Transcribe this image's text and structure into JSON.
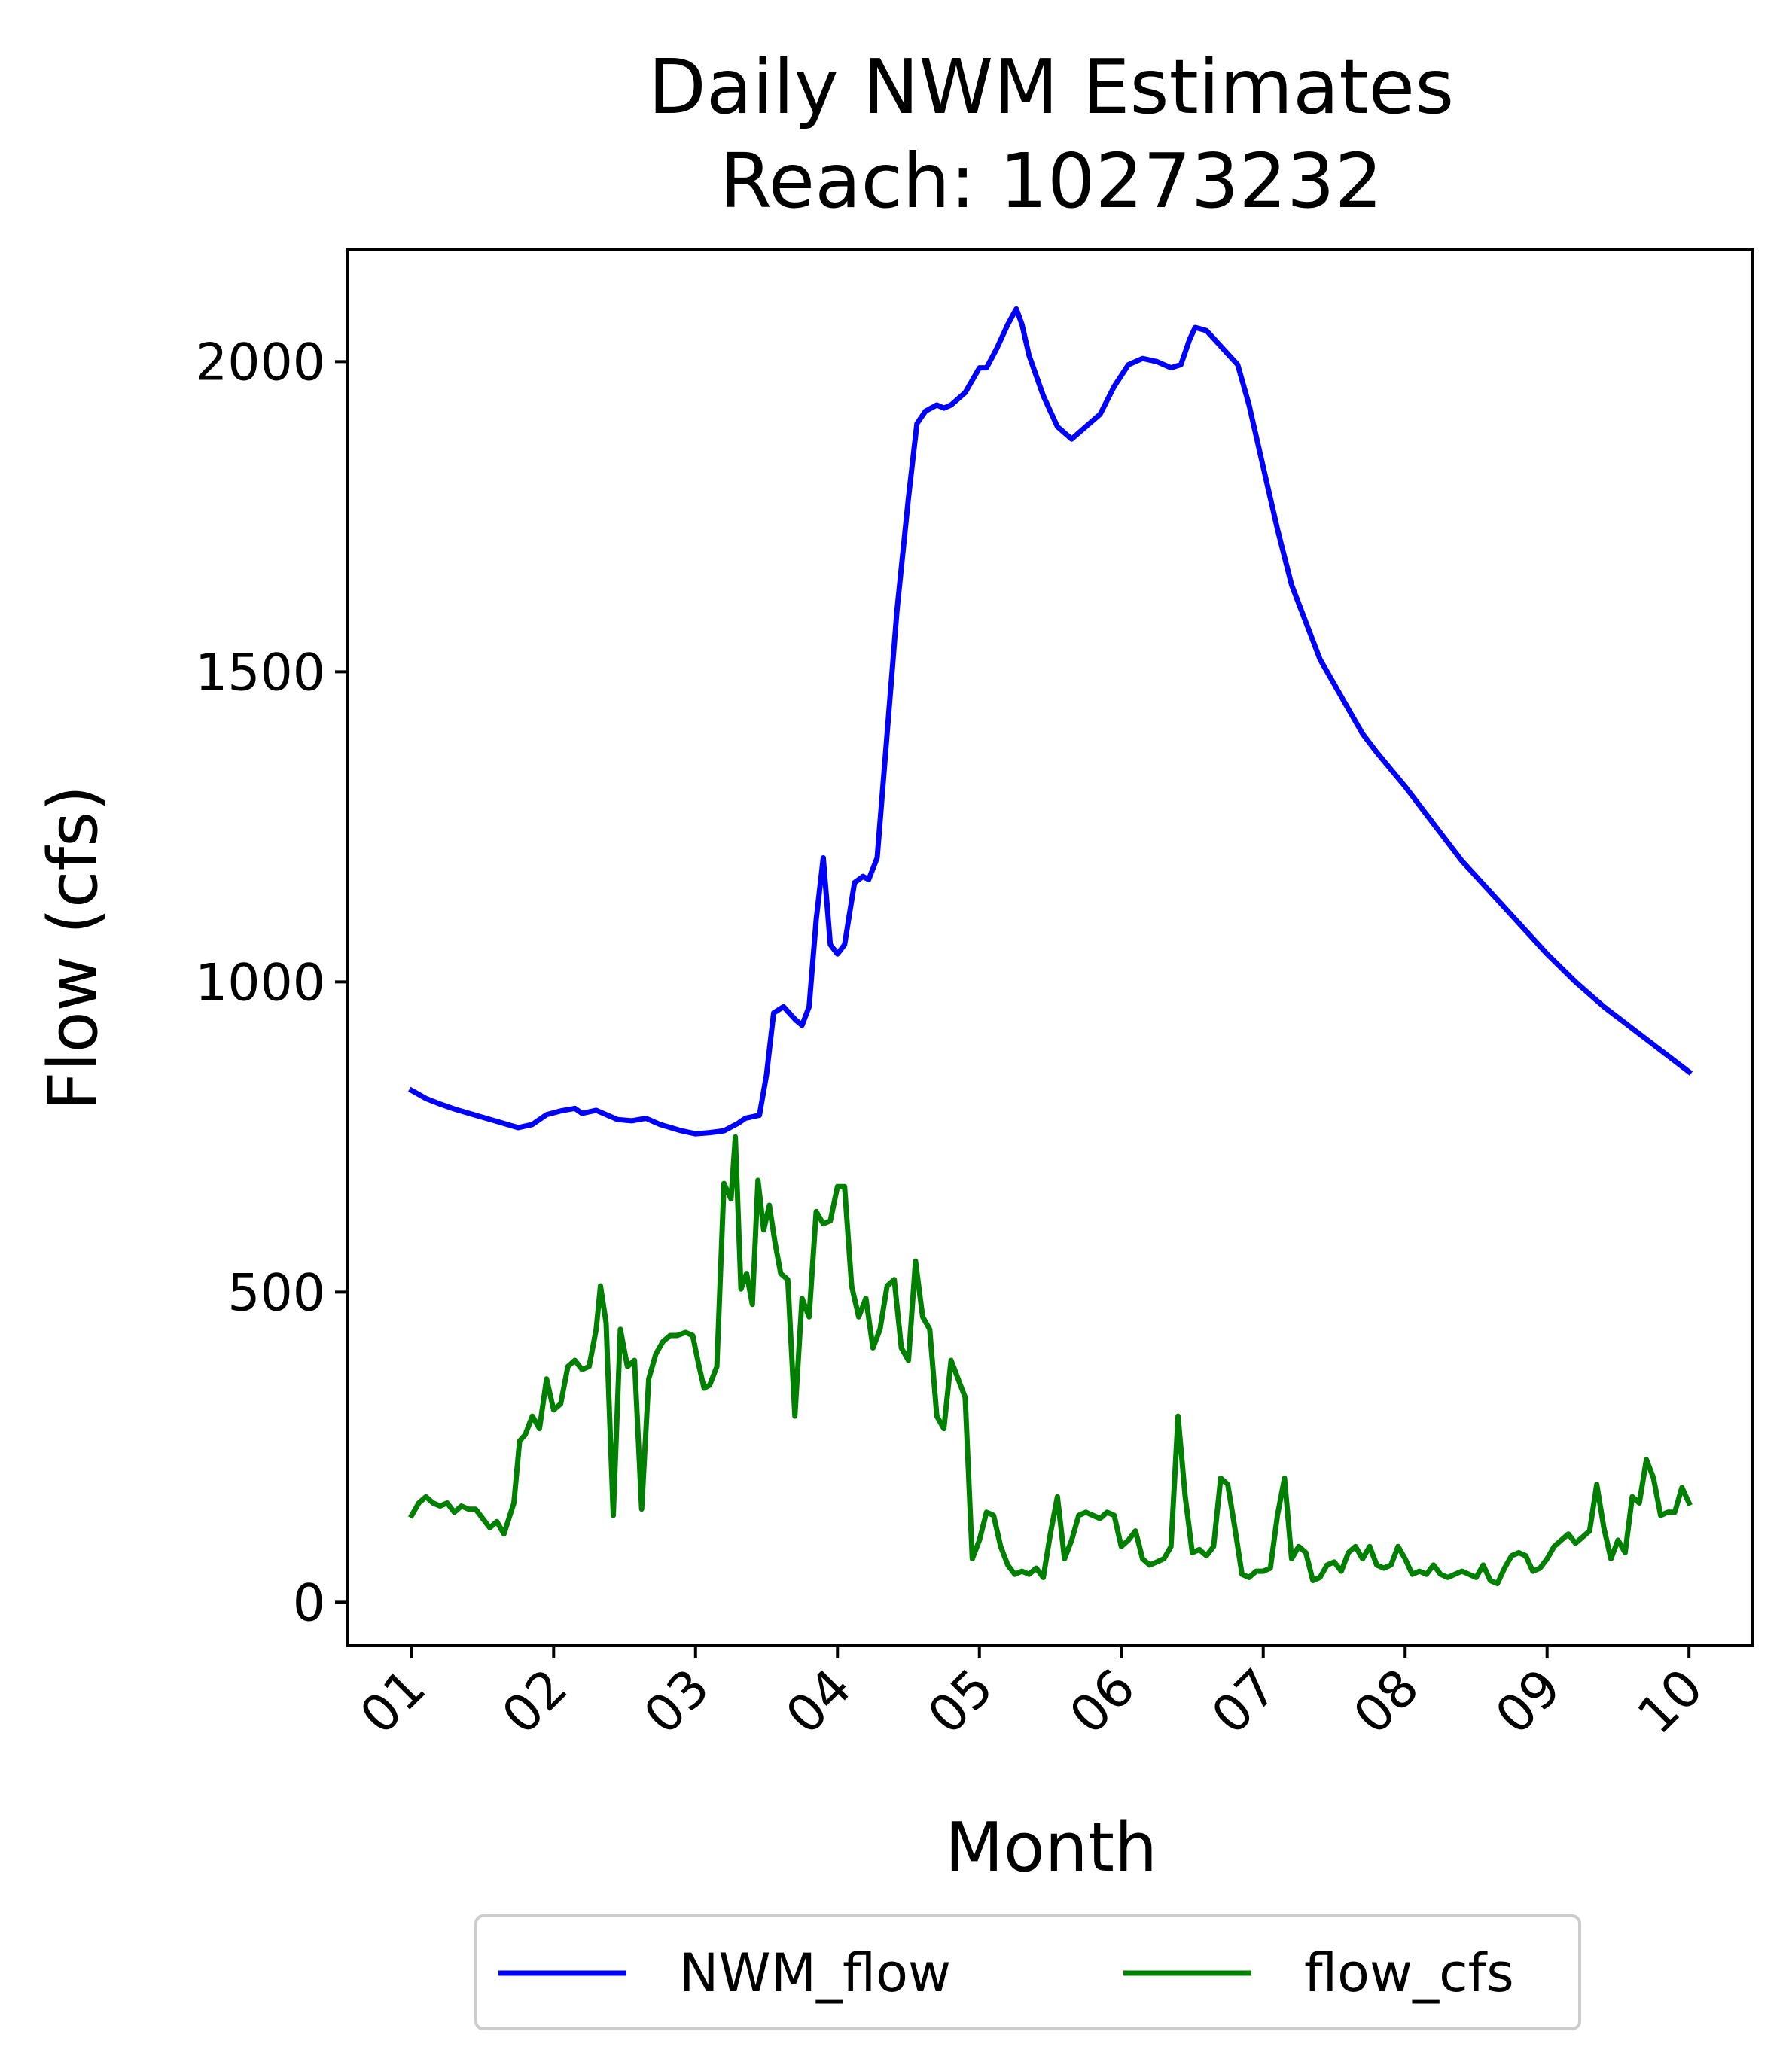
{
  "chart_data": {
    "type": "line",
    "title": [
      "Daily NWM Estimates",
      "Reach: 10273232"
    ],
    "xlabel": "Month",
    "ylabel": "Flow (cfs)",
    "x_tick_labels": [
      "01",
      "02",
      "03",
      "04",
      "05",
      "06",
      "07",
      "08",
      "09",
      "10"
    ],
    "xlim": [
      0.55,
      10.45
    ],
    "ylim": [
      -70,
      2180
    ],
    "y_ticks": [
      0,
      500,
      1000,
      1500,
      2000
    ],
    "y_tick_labels": [
      "0",
      "500",
      "1000",
      "1500",
      "2000"
    ],
    "grid": false,
    "legend_position": "bottom-center, below the plot",
    "series": [
      {
        "name": "NWM_flow",
        "color": "#0000ff",
        "points": [
          [
            1.0,
            825
          ],
          [
            1.1,
            812
          ],
          [
            1.2,
            803
          ],
          [
            1.3,
            795
          ],
          [
            1.45,
            785
          ],
          [
            1.6,
            775
          ],
          [
            1.75,
            765
          ],
          [
            1.85,
            770
          ],
          [
            1.95,
            786
          ],
          [
            2.05,
            792
          ],
          [
            2.15,
            796
          ],
          [
            2.2,
            788
          ],
          [
            2.3,
            793
          ],
          [
            2.45,
            778
          ],
          [
            2.55,
            776
          ],
          [
            2.65,
            780
          ],
          [
            2.75,
            770
          ],
          [
            2.9,
            760
          ],
          [
            3.0,
            755
          ],
          [
            3.1,
            757
          ],
          [
            3.2,
            760
          ],
          [
            3.3,
            772
          ],
          [
            3.35,
            780
          ],
          [
            3.45,
            785
          ],
          [
            3.5,
            850
          ],
          [
            3.55,
            950
          ],
          [
            3.62,
            960
          ],
          [
            3.7,
            940
          ],
          [
            3.75,
            930
          ],
          [
            3.8,
            960
          ],
          [
            3.85,
            1100
          ],
          [
            3.9,
            1200
          ],
          [
            3.95,
            1060
          ],
          [
            4.0,
            1045
          ],
          [
            4.05,
            1060
          ],
          [
            4.12,
            1160
          ],
          [
            4.18,
            1170
          ],
          [
            4.22,
            1165
          ],
          [
            4.28,
            1200
          ],
          [
            4.35,
            1400
          ],
          [
            4.42,
            1600
          ],
          [
            4.5,
            1780
          ],
          [
            4.56,
            1900
          ],
          [
            4.62,
            1920
          ],
          [
            4.7,
            1930
          ],
          [
            4.75,
            1925
          ],
          [
            4.8,
            1930
          ],
          [
            4.9,
            1950
          ],
          [
            5.0,
            1990
          ],
          [
            5.05,
            1990
          ],
          [
            5.12,
            2020
          ],
          [
            5.2,
            2060
          ],
          [
            5.26,
            2085
          ],
          [
            5.3,
            2060
          ],
          [
            5.35,
            2010
          ],
          [
            5.45,
            1945
          ],
          [
            5.55,
            1895
          ],
          [
            5.65,
            1875
          ],
          [
            5.75,
            1895
          ],
          [
            5.85,
            1915
          ],
          [
            5.95,
            1960
          ],
          [
            6.05,
            1995
          ],
          [
            6.15,
            2005
          ],
          [
            6.25,
            2000
          ],
          [
            6.35,
            1990
          ],
          [
            6.42,
            1995
          ],
          [
            6.48,
            2035
          ],
          [
            6.52,
            2055
          ],
          [
            6.6,
            2050
          ],
          [
            6.68,
            2030
          ],
          [
            6.76,
            2010
          ],
          [
            6.82,
            1995
          ],
          [
            6.9,
            1930
          ],
          [
            7.0,
            1830
          ],
          [
            7.1,
            1730
          ],
          [
            7.2,
            1640
          ],
          [
            7.3,
            1580
          ],
          [
            7.4,
            1520
          ],
          [
            7.5,
            1480
          ],
          [
            7.6,
            1440
          ],
          [
            7.7,
            1400
          ],
          [
            7.8,
            1370
          ],
          [
            8.0,
            1315
          ],
          [
            8.2,
            1255
          ],
          [
            8.4,
            1195
          ],
          [
            8.6,
            1145
          ],
          [
            8.8,
            1095
          ],
          [
            9.0,
            1045
          ],
          [
            9.2,
            1000
          ],
          [
            9.4,
            960
          ],
          [
            9.6,
            925
          ],
          [
            9.8,
            890
          ],
          [
            10.0,
            855
          ]
        ]
      },
      {
        "name": "flow_cfs",
        "color": "#008000",
        "points": [
          [
            1.0,
            140
          ],
          [
            1.05,
            160
          ],
          [
            1.1,
            170
          ],
          [
            1.15,
            160
          ],
          [
            1.2,
            155
          ],
          [
            1.25,
            160
          ],
          [
            1.3,
            145
          ],
          [
            1.35,
            155
          ],
          [
            1.4,
            150
          ],
          [
            1.45,
            150
          ],
          [
            1.5,
            135
          ],
          [
            1.55,
            120
          ],
          [
            1.6,
            130
          ],
          [
            1.65,
            110
          ],
          [
            1.72,
            160
          ],
          [
            1.76,
            260
          ],
          [
            1.8,
            270
          ],
          [
            1.85,
            300
          ],
          [
            1.9,
            280
          ],
          [
            1.95,
            360
          ],
          [
            2.0,
            310
          ],
          [
            2.05,
            320
          ],
          [
            2.1,
            380
          ],
          [
            2.15,
            390
          ],
          [
            2.2,
            375
          ],
          [
            2.25,
            380
          ],
          [
            2.3,
            440
          ],
          [
            2.33,
            510
          ],
          [
            2.37,
            450
          ],
          [
            2.42,
            140
          ],
          [
            2.47,
            440
          ],
          [
            2.52,
            380
          ],
          [
            2.57,
            390
          ],
          [
            2.62,
            150
          ],
          [
            2.67,
            360
          ],
          [
            2.72,
            400
          ],
          [
            2.77,
            420
          ],
          [
            2.82,
            430
          ],
          [
            2.87,
            430
          ],
          [
            2.93,
            435
          ],
          [
            2.98,
            430
          ],
          [
            3.02,
            385
          ],
          [
            3.06,
            345
          ],
          [
            3.1,
            350
          ],
          [
            3.15,
            380
          ],
          [
            3.2,
            675
          ],
          [
            3.25,
            650
          ],
          [
            3.28,
            750
          ],
          [
            3.32,
            505
          ],
          [
            3.36,
            530
          ],
          [
            3.4,
            480
          ],
          [
            3.44,
            680
          ],
          [
            3.48,
            600
          ],
          [
            3.52,
            640
          ],
          [
            3.56,
            580
          ],
          [
            3.6,
            530
          ],
          [
            3.65,
            520
          ],
          [
            3.7,
            300
          ],
          [
            3.75,
            490
          ],
          [
            3.8,
            460
          ],
          [
            3.85,
            630
          ],
          [
            3.9,
            610
          ],
          [
            3.95,
            615
          ],
          [
            4.0,
            670
          ],
          [
            4.05,
            670
          ],
          [
            4.1,
            510
          ],
          [
            4.15,
            460
          ],
          [
            4.2,
            490
          ],
          [
            4.25,
            410
          ],
          [
            4.3,
            440
          ],
          [
            4.35,
            510
          ],
          [
            4.4,
            520
          ],
          [
            4.45,
            410
          ],
          [
            4.5,
            390
          ],
          [
            4.55,
            550
          ],
          [
            4.6,
            460
          ],
          [
            4.65,
            440
          ],
          [
            4.7,
            300
          ],
          [
            4.75,
            280
          ],
          [
            4.8,
            390
          ],
          [
            4.85,
            360
          ],
          [
            4.9,
            330
          ],
          [
            4.95,
            70
          ],
          [
            5.0,
            100
          ],
          [
            5.05,
            145
          ],
          [
            5.1,
            140
          ],
          [
            5.15,
            90
          ],
          [
            5.2,
            60
          ],
          [
            5.25,
            45
          ],
          [
            5.3,
            50
          ],
          [
            5.35,
            45
          ],
          [
            5.4,
            55
          ],
          [
            5.45,
            40
          ],
          [
            5.5,
            110
          ],
          [
            5.55,
            170
          ],
          [
            5.6,
            70
          ],
          [
            5.65,
            100
          ],
          [
            5.7,
            140
          ],
          [
            5.75,
            145
          ],
          [
            5.8,
            140
          ],
          [
            5.85,
            135
          ],
          [
            5.9,
            145
          ],
          [
            5.95,
            140
          ],
          [
            6.0,
            90
          ],
          [
            6.05,
            100
          ],
          [
            6.1,
            115
          ],
          [
            6.15,
            70
          ],
          [
            6.2,
            60
          ],
          [
            6.25,
            65
          ],
          [
            6.3,
            70
          ],
          [
            6.35,
            90
          ],
          [
            6.4,
            300
          ],
          [
            6.45,
            170
          ],
          [
            6.5,
            80
          ],
          [
            6.55,
            85
          ],
          [
            6.6,
            75
          ],
          [
            6.65,
            90
          ],
          [
            6.7,
            200
          ],
          [
            6.75,
            190
          ],
          [
            6.8,
            120
          ],
          [
            6.85,
            45
          ],
          [
            6.9,
            40
          ],
          [
            6.95,
            50
          ],
          [
            7.0,
            50
          ],
          [
            7.05,
            55
          ],
          [
            7.1,
            140
          ],
          [
            7.15,
            200
          ],
          [
            7.2,
            70
          ],
          [
            7.25,
            90
          ],
          [
            7.3,
            80
          ],
          [
            7.35,
            35
          ],
          [
            7.4,
            40
          ],
          [
            7.45,
            60
          ],
          [
            7.5,
            65
          ],
          [
            7.55,
            50
          ],
          [
            7.6,
            80
          ],
          [
            7.65,
            90
          ],
          [
            7.7,
            70
          ],
          [
            7.75,
            90
          ],
          [
            7.8,
            60
          ],
          [
            7.85,
            55
          ],
          [
            7.9,
            60
          ],
          [
            7.95,
            90
          ],
          [
            8.0,
            70
          ],
          [
            8.05,
            45
          ],
          [
            8.1,
            50
          ],
          [
            8.15,
            45
          ],
          [
            8.2,
            60
          ],
          [
            8.25,
            45
          ],
          [
            8.3,
            40
          ],
          [
            8.35,
            45
          ],
          [
            8.4,
            50
          ],
          [
            8.45,
            45
          ],
          [
            8.5,
            40
          ],
          [
            8.55,
            60
          ],
          [
            8.6,
            35
          ],
          [
            8.65,
            30
          ],
          [
            8.7,
            55
          ],
          [
            8.75,
            75
          ],
          [
            8.8,
            80
          ],
          [
            8.85,
            75
          ],
          [
            8.9,
            50
          ],
          [
            8.95,
            55
          ],
          [
            9.0,
            70
          ],
          [
            9.05,
            90
          ],
          [
            9.1,
            100
          ],
          [
            9.15,
            110
          ],
          [
            9.2,
            95
          ],
          [
            9.25,
            105
          ],
          [
            9.3,
            115
          ],
          [
            9.35,
            190
          ],
          [
            9.4,
            120
          ],
          [
            9.45,
            70
          ],
          [
            9.5,
            100
          ],
          [
            9.55,
            80
          ],
          [
            9.6,
            170
          ],
          [
            9.65,
            160
          ],
          [
            9.7,
            230
          ],
          [
            9.75,
            200
          ],
          [
            9.8,
            140
          ],
          [
            9.85,
            145
          ],
          [
            9.9,
            145
          ],
          [
            9.95,
            185
          ],
          [
            10.0,
            160
          ]
        ]
      }
    ]
  }
}
